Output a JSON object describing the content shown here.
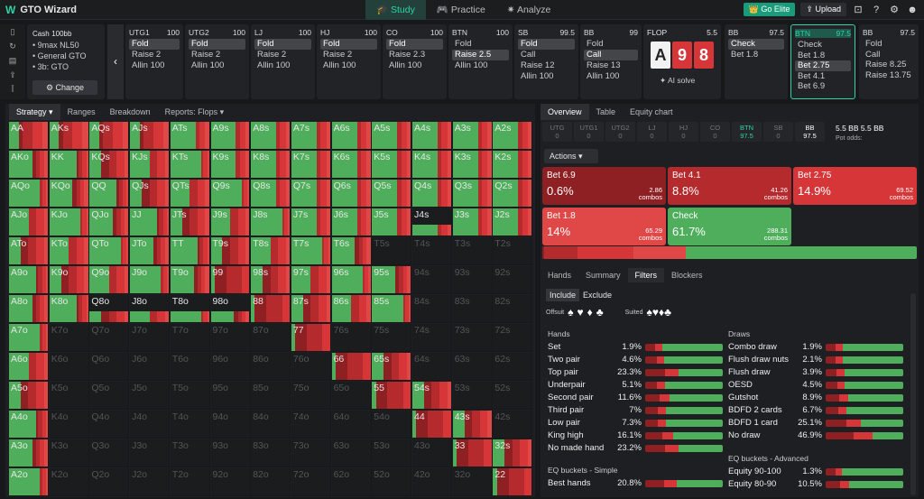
{
  "app": {
    "name": "GTO Wizard",
    "nav": [
      "Study",
      "Practice",
      "Analyze"
    ],
    "elite": "Go Elite",
    "upload": "Upload"
  },
  "colors": {
    "green": "#4fae5b",
    "red1": "#8e1f22",
    "red2": "#b42a2d",
    "red3": "#d63638",
    "red4": "#e04848"
  },
  "cash": {
    "title": "Cash",
    "stack": "100bb",
    "items": [
      "9max NL50",
      "General GTO",
      "3b: GTO"
    ],
    "change": "Change"
  },
  "positions": [
    {
      "name": "UTG1",
      "stack": "100",
      "actions": [
        "Fold",
        "Raise 2",
        "Allin 100"
      ],
      "sel": 0
    },
    {
      "name": "UTG2",
      "stack": "100",
      "actions": [
        "Fold",
        "Raise 2",
        "Allin 100"
      ],
      "sel": 0
    },
    {
      "name": "LJ",
      "stack": "100",
      "actions": [
        "Fold",
        "Raise 2",
        "Allin 100"
      ],
      "sel": 0
    },
    {
      "name": "HJ",
      "stack": "100",
      "actions": [
        "Fold",
        "Raise 2",
        "Allin 100"
      ],
      "sel": 0
    },
    {
      "name": "CO",
      "stack": "100",
      "actions": [
        "Fold",
        "Raise 2.3",
        "Allin 100"
      ],
      "sel": 0
    },
    {
      "name": "BTN",
      "stack": "100",
      "actions": [
        "Fold",
        "Raise 2.5",
        "Allin 100"
      ],
      "sel": 1
    },
    {
      "name": "SB",
      "stack": "99.5",
      "actions": [
        "Fold",
        "Call",
        "Raise 12",
        "Allin 100"
      ],
      "sel": 0
    },
    {
      "name": "BB",
      "stack": "99",
      "actions": [
        "Fold",
        "Call",
        "Raise 13",
        "Allin 100"
      ],
      "sel": 1
    }
  ],
  "flop": {
    "label": "FLOP",
    "pot": "5.5",
    "cards": [
      "A",
      "9",
      "8"
    ],
    "ai": "AI solve"
  },
  "postflop": [
    {
      "name": "BB",
      "stack": "97.5",
      "actions": [
        "Check",
        "Bet 1.8"
      ],
      "sel": 0
    },
    {
      "name": "BTN",
      "stack": "97.5",
      "actions": [
        "Check",
        "Bet 1.8",
        "Bet 2.75",
        "Bet 4.1",
        "Bet 6.9"
      ],
      "sel": 2,
      "cur": true
    },
    {
      "name": "BB",
      "stack": "97.5",
      "actions": [
        "Fold",
        "Call",
        "Raise 8.25",
        "Raise 13.75"
      ],
      "sel": -1
    }
  ],
  "leftTabs": [
    "Strategy",
    "Ranges",
    "Breakdown",
    "Reports: Flops"
  ],
  "ranks": [
    "A",
    "K",
    "Q",
    "J",
    "T",
    "9",
    "8",
    "7",
    "6",
    "5",
    "4",
    "3",
    "2"
  ],
  "rightTabs": [
    "Overview",
    "Table",
    "Equity chart"
  ],
  "posrow": [
    {
      "n": "UTG",
      "v": "0"
    },
    {
      "n": "UTG1",
      "v": "0"
    },
    {
      "n": "UTG2",
      "v": "0"
    },
    {
      "n": "LJ",
      "v": "0"
    },
    {
      "n": "HJ",
      "v": "0"
    },
    {
      "n": "CO",
      "v": "0"
    },
    {
      "n": "BTN",
      "v": "97.5"
    },
    {
      "n": "SB",
      "v": "0"
    },
    {
      "n": "BB",
      "v": "97.5"
    }
  ],
  "pot": {
    "value": "5.5 BB",
    "label": "Pot odds:",
    "value2": "5.5 BB"
  },
  "actionsLabel": "Actions",
  "actionBoxes": [
    {
      "name": "Bet 6.9",
      "pct": "0.6%",
      "combos": "2.86",
      "color": "#8e1f22"
    },
    {
      "name": "Bet 4.1",
      "pct": "8.8%",
      "combos": "41.26",
      "color": "#b42a2d"
    },
    {
      "name": "Bet 2.75",
      "pct": "14.9%",
      "combos": "69.52",
      "color": "#d63638"
    },
    {
      "name": "Bet 1.8",
      "pct": "14%",
      "combos": "65.29",
      "color": "#e04848"
    },
    {
      "name": "Check",
      "pct": "61.7%",
      "combos": "288.31",
      "color": "#4fae5b"
    }
  ],
  "combosLabel": "combos",
  "tabs2": [
    "Hands",
    "Summary",
    "Filters",
    "Blockers"
  ],
  "include": [
    "Include",
    "Exclude"
  ],
  "suits": {
    "offsuit": "Offsuit",
    "suited": "Suited"
  },
  "hands": {
    "title": "Hands",
    "rows": [
      {
        "n": "Set",
        "p": "1.9%"
      },
      {
        "n": "Two pair",
        "p": "4.6%"
      },
      {
        "n": "Top pair",
        "p": "23.3%"
      },
      {
        "n": "Underpair",
        "p": "5.1%"
      },
      {
        "n": "Second pair",
        "p": "11.6%"
      },
      {
        "n": "Third pair",
        "p": "7%"
      },
      {
        "n": "Low pair",
        "p": "7.3%"
      },
      {
        "n": "King high",
        "p": "16.1%"
      },
      {
        "n": "No made hand",
        "p": "23.2%"
      }
    ]
  },
  "draws": {
    "title": "Draws",
    "rows": [
      {
        "n": "Combo draw",
        "p": "1.9%"
      },
      {
        "n": "Flush draw nuts",
        "p": "2.1%"
      },
      {
        "n": "Flush draw",
        "p": "3.9%"
      },
      {
        "n": "OESD",
        "p": "4.5%"
      },
      {
        "n": "Gutshot",
        "p": "8.9%"
      },
      {
        "n": "BDFD 2 cards",
        "p": "6.7%"
      },
      {
        "n": "BDFD 1 card",
        "p": "25.1%"
      },
      {
        "n": "No draw",
        "p": "46.9%"
      }
    ]
  },
  "eqSimple": {
    "title": "EQ buckets - Simple",
    "rows": [
      {
        "n": "Best hands",
        "p": "20.8%"
      }
    ]
  },
  "eqAdv": {
    "title": "EQ buckets - Advanced",
    "rows": [
      {
        "n": "Equity 90-100",
        "p": "1.3%"
      },
      {
        "n": "Equity 80-90",
        "p": "10.5%"
      }
    ]
  }
}
